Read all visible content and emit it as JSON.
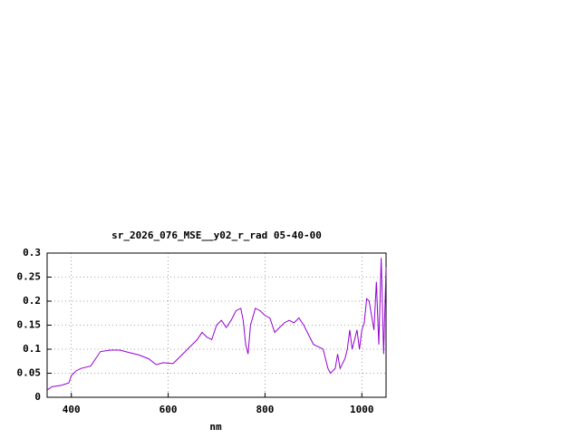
{
  "chart_data": {
    "type": "line",
    "title": "sr_2026_076_MSE__y02_r_rad 05-40-00",
    "x_label": "nm",
    "x": [
      350,
      360,
      380,
      395,
      400,
      410,
      420,
      440,
      450,
      460,
      480,
      500,
      520,
      540,
      560,
      575,
      590,
      610,
      620,
      640,
      660,
      670,
      680,
      690,
      700,
      710,
      720,
      730,
      740,
      750,
      755,
      760,
      765,
      770,
      780,
      790,
      800,
      810,
      820,
      830,
      840,
      850,
      860,
      870,
      880,
      890,
      900,
      910,
      920,
      930,
      935,
      945,
      950,
      955,
      965,
      970,
      975,
      980,
      990,
      995,
      1000,
      1005,
      1010,
      1015,
      1020,
      1025,
      1030,
      1035,
      1040,
      1045,
      1050
    ],
    "series": [
      {
        "color": "#9400d3",
        "values": [
          0.015,
          0.022,
          0.025,
          0.03,
          0.045,
          0.055,
          0.06,
          0.065,
          0.08,
          0.095,
          0.098,
          0.098,
          0.093,
          0.088,
          0.08,
          0.068,
          0.072,
          0.07,
          0.08,
          0.1,
          0.12,
          0.135,
          0.125,
          0.12,
          0.15,
          0.16,
          0.145,
          0.16,
          0.18,
          0.185,
          0.16,
          0.11,
          0.09,
          0.15,
          0.185,
          0.18,
          0.17,
          0.165,
          0.135,
          0.145,
          0.155,
          0.16,
          0.155,
          0.165,
          0.15,
          0.13,
          0.11,
          0.105,
          0.1,
          0.06,
          0.05,
          0.06,
          0.09,
          0.06,
          0.08,
          0.1,
          0.14,
          0.1,
          0.14,
          0.1,
          0.14,
          0.155,
          0.205,
          0.2,
          0.17,
          0.14,
          0.24,
          0.11,
          0.29,
          0.09,
          0.27
        ]
      }
    ],
    "xlim": [
      350,
      1050
    ],
    "xticks": [
      400,
      600,
      800,
      1000
    ],
    "ylim": [
      0,
      0.3
    ],
    "yticks": [
      0,
      0.05,
      0.1,
      0.15,
      0.2,
      0.25,
      0.3
    ],
    "grid": true
  }
}
